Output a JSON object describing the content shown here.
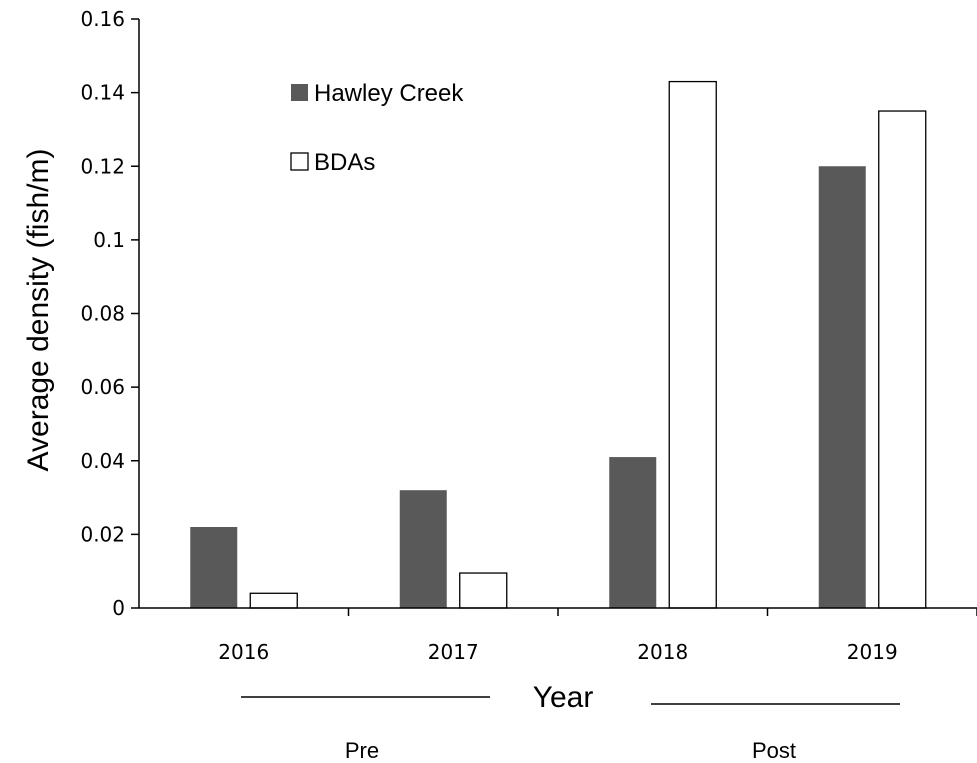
{
  "chart_data": {
    "type": "bar",
    "title": "",
    "xlabel": "Year",
    "ylabel": "Average density (fish/m)",
    "categories": [
      "2016",
      "2017",
      "2018",
      "2019"
    ],
    "series": [
      {
        "name": "Hawley Creek",
        "color": "#595959",
        "values": [
          0.022,
          0.032,
          0.041,
          0.12
        ]
      },
      {
        "name": "BDAs",
        "color": "#ffffff",
        "values": [
          0.004,
          0.0095,
          0.143,
          0.135
        ]
      }
    ],
    "ylim": [
      0,
      0.16
    ],
    "yticks": [
      0,
      0.02,
      0.04,
      0.06,
      0.08,
      0.1,
      0.12,
      0.14,
      0.16
    ],
    "ytick_labels": [
      "0",
      "0.02",
      "0.04",
      "0.06",
      "0.08",
      "0.1",
      "0.12",
      "0.14",
      "0.16"
    ],
    "grid": false,
    "legend_position": "top-left",
    "period_groups": [
      {
        "label": "Pre",
        "categories": [
          "2016",
          "2017"
        ]
      },
      {
        "label": "Post",
        "categories": [
          "2018",
          "2019"
        ]
      }
    ]
  }
}
